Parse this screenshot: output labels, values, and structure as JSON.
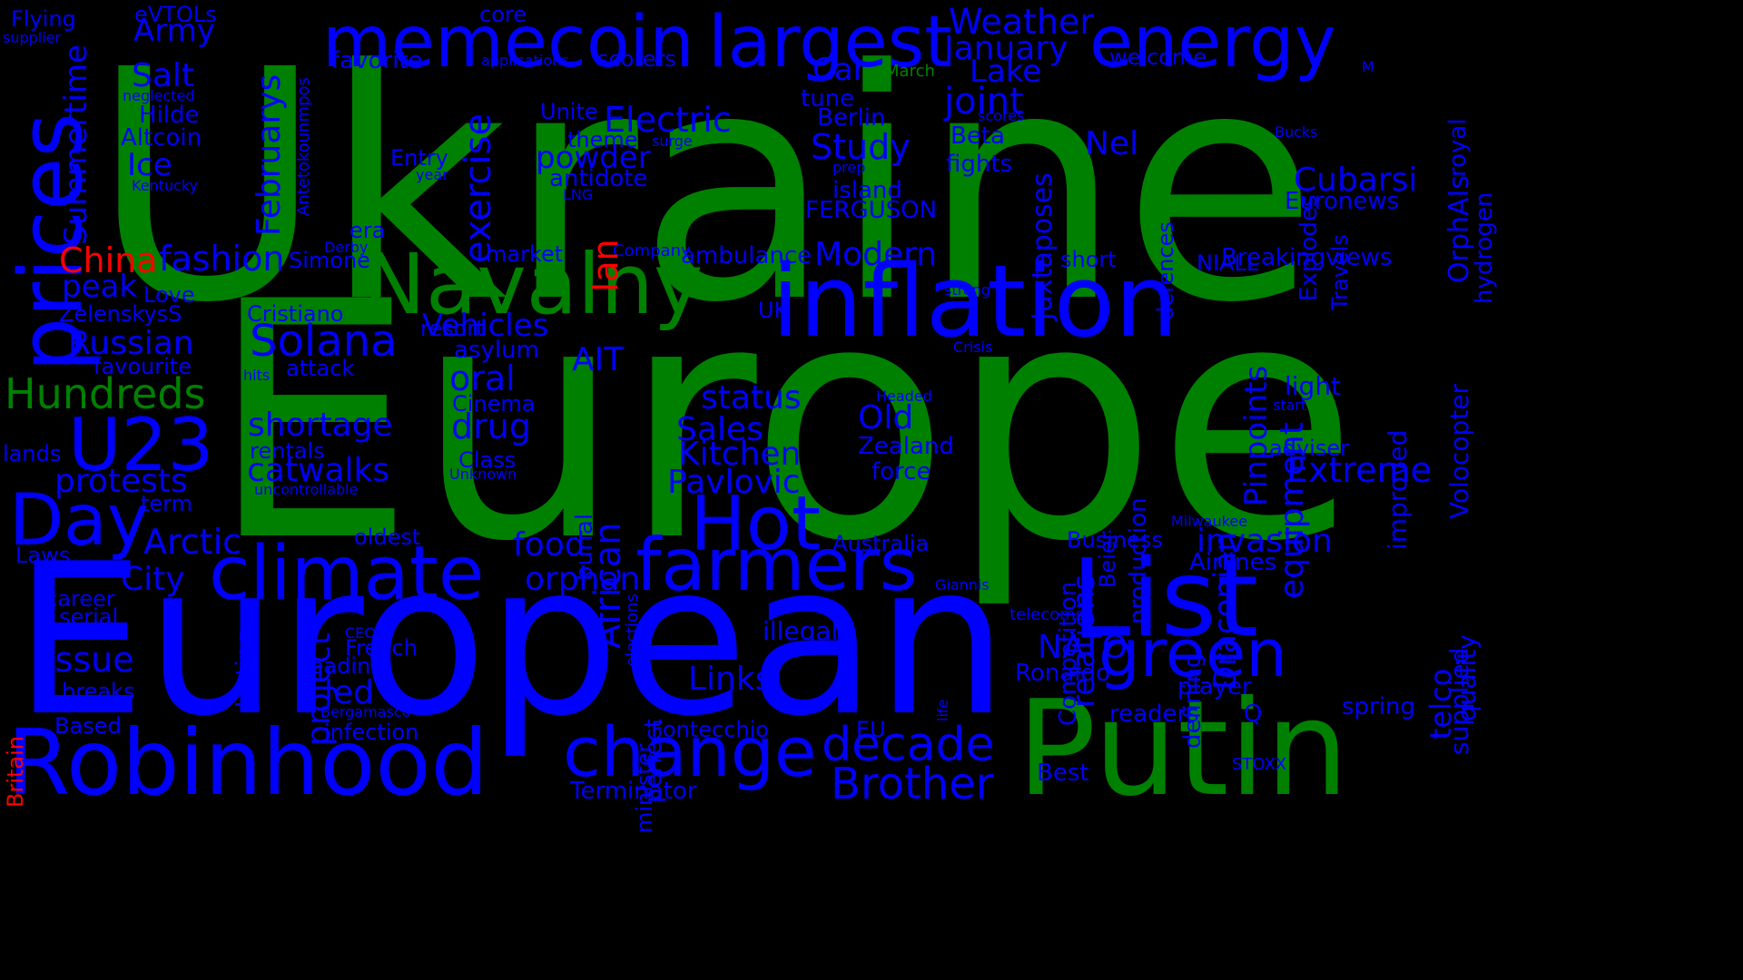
{
  "colors": {
    "background": "#000000",
    "green": "#008000",
    "blue": "#0000ff",
    "red": "#ff0000"
  },
  "words": [
    {
      "text": "Ukraine",
      "color": "green"
    },
    {
      "text": "Europe",
      "color": "green"
    },
    {
      "text": "European",
      "color": "blue"
    },
    {
      "text": "Putin",
      "color": "green"
    },
    {
      "text": "inflation",
      "color": "blue"
    },
    {
      "text": "memecoin",
      "color": "blue"
    },
    {
      "text": "largest",
      "color": "blue"
    },
    {
      "text": "energy",
      "color": "blue"
    },
    {
      "text": "Navalny",
      "color": "green"
    },
    {
      "text": "prices",
      "color": "blue"
    },
    {
      "text": "List",
      "color": "blue"
    },
    {
      "text": "Robinhood",
      "color": "blue"
    },
    {
      "text": "change",
      "color": "blue"
    },
    {
      "text": "climate",
      "color": "blue"
    },
    {
      "text": "farmers",
      "color": "blue"
    },
    {
      "text": "Hot",
      "color": "blue"
    },
    {
      "text": "green",
      "color": "blue"
    },
    {
      "text": "decade",
      "color": "blue"
    },
    {
      "text": "Brother",
      "color": "blue"
    },
    {
      "text": "U23",
      "color": "blue"
    },
    {
      "text": "Day",
      "color": "blue"
    },
    {
      "text": "Hundreds",
      "color": "green"
    },
    {
      "text": "Solana",
      "color": "blue"
    },
    {
      "text": "Weather",
      "color": "blue"
    },
    {
      "text": "January",
      "color": "blue"
    },
    {
      "text": "Lake",
      "color": "blue"
    },
    {
      "text": "joint",
      "color": "blue"
    },
    {
      "text": "Car",
      "color": "blue"
    },
    {
      "text": "Electric",
      "color": "blue"
    },
    {
      "text": "Study",
      "color": "blue"
    },
    {
      "text": "powder",
      "color": "blue"
    },
    {
      "text": "antidote",
      "color": "blue"
    },
    {
      "text": "Nel",
      "color": "blue"
    },
    {
      "text": "Cubarsi",
      "color": "blue"
    },
    {
      "text": "Euronews",
      "color": "blue"
    },
    {
      "text": "Summertime",
      "color": "blue"
    },
    {
      "text": "Februarys",
      "color": "blue"
    },
    {
      "text": "fashion",
      "color": "blue"
    },
    {
      "text": "Simone",
      "color": "blue"
    },
    {
      "text": "Modern",
      "color": "blue"
    },
    {
      "text": "ambulance",
      "color": "blue"
    },
    {
      "text": "market",
      "color": "blue"
    },
    {
      "text": "Company",
      "color": "blue"
    },
    {
      "text": "peak",
      "color": "blue"
    },
    {
      "text": "Love",
      "color": "blue"
    },
    {
      "text": "ZelenskysS",
      "color": "blue"
    },
    {
      "text": "Russian",
      "color": "blue"
    },
    {
      "text": "favourite",
      "color": "blue"
    },
    {
      "text": "hits",
      "color": "blue"
    },
    {
      "text": "attack",
      "color": "blue"
    },
    {
      "text": "Cristiano",
      "color": "blue"
    },
    {
      "text": "Vehicles",
      "color": "blue"
    },
    {
      "text": "resort",
      "color": "blue"
    },
    {
      "text": "asylum",
      "color": "blue"
    },
    {
      "text": "oral",
      "color": "blue"
    },
    {
      "text": "AIT",
      "color": "blue"
    },
    {
      "text": "Cinema",
      "color": "blue"
    },
    {
      "text": "drug",
      "color": "blue"
    },
    {
      "text": "shortage",
      "color": "blue"
    },
    {
      "text": "rentals",
      "color": "blue"
    },
    {
      "text": "catwalks",
      "color": "blue"
    },
    {
      "text": "Class",
      "color": "blue"
    },
    {
      "text": "Unknown",
      "color": "blue"
    },
    {
      "text": "uncontrollable",
      "color": "blue"
    },
    {
      "text": "status",
      "color": "blue"
    },
    {
      "text": "Sales",
      "color": "blue"
    },
    {
      "text": "Kitchen",
      "color": "blue"
    },
    {
      "text": "Pavlovic",
      "color": "blue"
    },
    {
      "text": "Old",
      "color": "blue"
    },
    {
      "text": "Zealand",
      "color": "blue"
    },
    {
      "text": "force",
      "color": "blue"
    },
    {
      "text": "protests",
      "color": "blue"
    },
    {
      "text": "term",
      "color": "blue"
    },
    {
      "text": "lands",
      "color": "blue"
    },
    {
      "text": "Arctic",
      "color": "blue"
    },
    {
      "text": "City",
      "color": "blue"
    },
    {
      "text": "oldest",
      "color": "blue"
    },
    {
      "text": "food",
      "color": "blue"
    },
    {
      "text": "orphan",
      "color": "blue"
    },
    {
      "text": "Australia",
      "color": "blue"
    },
    {
      "text": "Business",
      "color": "blue"
    },
    {
      "text": "invasion",
      "color": "blue"
    },
    {
      "text": "Airlines",
      "color": "blue"
    },
    {
      "text": "Extreme",
      "color": "blue"
    },
    {
      "text": "adviser",
      "color": "blue"
    },
    {
      "text": "light",
      "color": "blue"
    },
    {
      "text": "start",
      "color": "blue"
    },
    {
      "text": "Headed",
      "color": "blue"
    },
    {
      "text": "NATO",
      "color": "blue"
    },
    {
      "text": "Ronaldo",
      "color": "blue"
    },
    {
      "text": "Links",
      "color": "blue"
    },
    {
      "text": "illegal",
      "color": "blue"
    },
    {
      "text": "CEOs",
      "color": "blue"
    },
    {
      "text": "French",
      "color": "blue"
    },
    {
      "text": "leading",
      "color": "blue"
    },
    {
      "text": "led",
      "color": "blue"
    },
    {
      "text": "Bergamasco",
      "color": "blue"
    },
    {
      "text": "infection",
      "color": "blue"
    },
    {
      "text": "Fontecchio",
      "color": "blue"
    },
    {
      "text": "EU",
      "color": "blue"
    },
    {
      "text": "Terminator",
      "color": "blue"
    },
    {
      "text": "career",
      "color": "blue"
    },
    {
      "text": "serial",
      "color": "blue"
    },
    {
      "text": "issue",
      "color": "blue"
    },
    {
      "text": "breaks",
      "color": "blue"
    },
    {
      "text": "Laws",
      "color": "blue"
    },
    {
      "text": "Based",
      "color": "blue"
    },
    {
      "text": "player",
      "color": "blue"
    },
    {
      "text": "readers",
      "color": "blue"
    },
    {
      "text": "Q",
      "color": "blue"
    },
    {
      "text": "Best",
      "color": "blue"
    },
    {
      "text": "STOXX",
      "color": "blue"
    },
    {
      "text": "telecoms",
      "color": "blue"
    },
    {
      "text": "Giannis",
      "color": "blue"
    },
    {
      "text": "Milwaukee",
      "color": "blue"
    },
    {
      "text": "spring",
      "color": "blue"
    },
    {
      "text": "Breakingviews",
      "color": "blue"
    },
    {
      "text": "NIALL",
      "color": "blue"
    },
    {
      "text": "short",
      "color": "blue"
    },
    {
      "text": "strong",
      "color": "blue"
    },
    {
      "text": "Crisis",
      "color": "blue"
    },
    {
      "text": "UK",
      "color": "blue"
    },
    {
      "text": "Berlin",
      "color": "blue"
    },
    {
      "text": "tune",
      "color": "blue"
    },
    {
      "text": "Beta",
      "color": "blue"
    },
    {
      "text": "fights",
      "color": "blue"
    },
    {
      "text": "island",
      "color": "blue"
    },
    {
      "text": "FERGUSON",
      "color": "blue"
    },
    {
      "text": "prep",
      "color": "blue"
    },
    {
      "text": "scores",
      "color": "blue"
    },
    {
      "text": "welcome",
      "color": "blue"
    },
    {
      "text": "Bucks",
      "color": "blue"
    },
    {
      "text": "M",
      "color": "blue"
    },
    {
      "text": "Flying",
      "color": "blue"
    },
    {
      "text": "supplier",
      "color": "blue"
    },
    {
      "text": "eVTOLs",
      "color": "blue"
    },
    {
      "text": "Army",
      "color": "blue"
    },
    {
      "text": "core",
      "color": "blue"
    },
    {
      "text": "favorite",
      "color": "blue"
    },
    {
      "text": "applications",
      "color": "blue"
    },
    {
      "text": "scorers",
      "color": "blue"
    },
    {
      "text": "Salt",
      "color": "blue"
    },
    {
      "text": "neglected",
      "color": "blue"
    },
    {
      "text": "Hilde",
      "color": "blue"
    },
    {
      "text": "Altcoin",
      "color": "blue"
    },
    {
      "text": "Ice",
      "color": "blue"
    },
    {
      "text": "Kentucky",
      "color": "blue"
    },
    {
      "text": "Unite",
      "color": "blue"
    },
    {
      "text": "theme",
      "color": "blue"
    },
    {
      "text": "surge",
      "color": "blue"
    },
    {
      "text": "Entry",
      "color": "blue"
    },
    {
      "text": "year",
      "color": "blue"
    },
    {
      "text": "LNG",
      "color": "blue"
    },
    {
      "text": "era",
      "color": "blue"
    },
    {
      "text": "Derby",
      "color": "blue"
    },
    {
      "text": "March",
      "color": "green"
    },
    {
      "text": "China",
      "color": "red"
    },
    {
      "text": "Ian",
      "color": "red"
    },
    {
      "text": "Britain",
      "color": "red"
    },
    {
      "text": "Antetokounmpos",
      "color": "blue"
    },
    {
      "text": "exercise",
      "color": "blue"
    },
    {
      "text": "African",
      "color": "blue"
    },
    {
      "text": "burial",
      "color": "blue"
    },
    {
      "text": "elections",
      "color": "blue"
    },
    {
      "text": "project",
      "color": "blue"
    },
    {
      "text": "Listing",
      "color": "blue"
    },
    {
      "text": "minister",
      "color": "blue"
    },
    {
      "text": "perfect",
      "color": "blue"
    },
    {
      "text": "life",
      "color": "blue"
    },
    {
      "text": "Competition",
      "color": "blue"
    },
    {
      "text": "defining",
      "color": "blue"
    },
    {
      "text": "relations",
      "color": "blue"
    },
    {
      "text": "Juxtaposes",
      "color": "blue"
    },
    {
      "text": "Draconian",
      "color": "blue"
    },
    {
      "text": "production",
      "color": "blue"
    },
    {
      "text": "Beier",
      "color": "blue"
    },
    {
      "text": "defences",
      "color": "blue"
    },
    {
      "text": "Pinpoints",
      "color": "blue"
    },
    {
      "text": "equipment",
      "color": "blue"
    },
    {
      "text": "Travels",
      "color": "blue"
    },
    {
      "text": "Explodes",
      "color": "blue"
    },
    {
      "text": "OrphAIs",
      "color": "blue"
    },
    {
      "text": "hydrogen",
      "color": "blue"
    },
    {
      "text": "royal",
      "color": "blue"
    },
    {
      "text": "Volocopter",
      "color": "blue"
    },
    {
      "text": "improved",
      "color": "blue"
    },
    {
      "text": "supplied",
      "color": "blue"
    },
    {
      "text": "quality",
      "color": "blue"
    },
    {
      "text": "telco",
      "color": "blue"
    }
  ]
}
